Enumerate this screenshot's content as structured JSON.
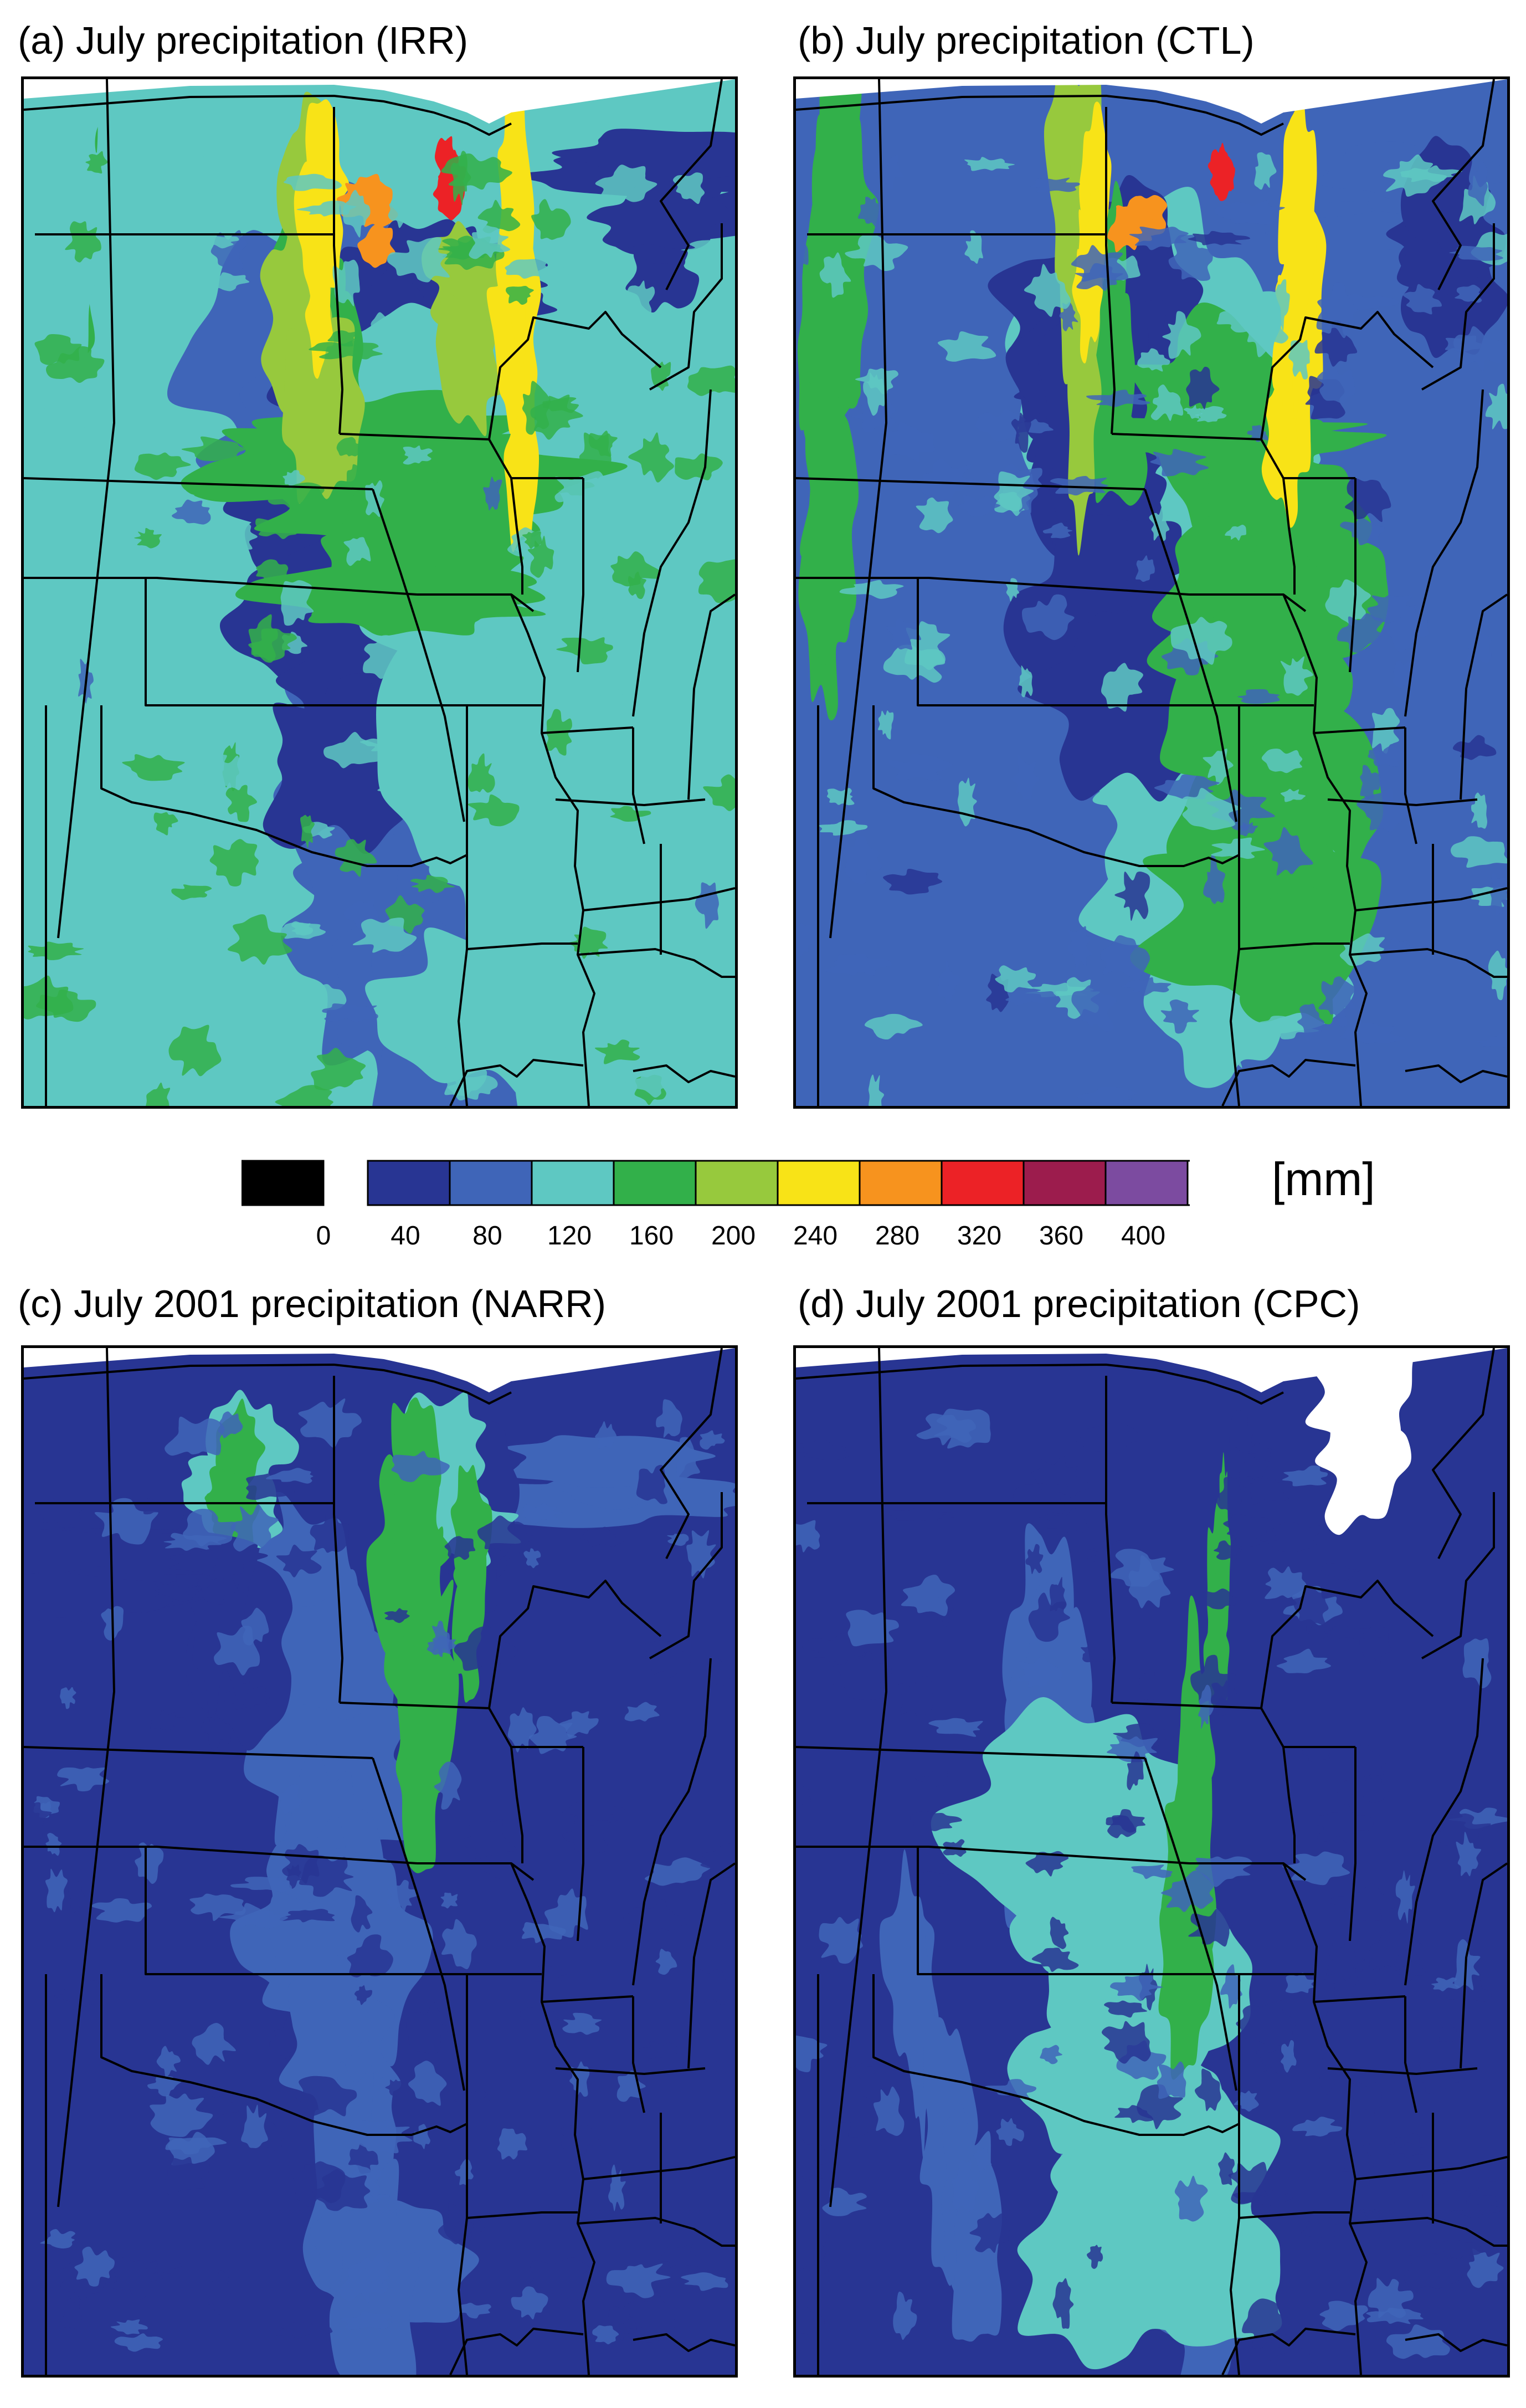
{
  "panels": [
    {
      "id": "a",
      "title": "(a) July precipitation (IRR)",
      "background_level": 3,
      "features": [
        [
          2,
          0.0,
          0.5,
          0.25,
          0.95,
          0.22,
          0.18,
          0.18
        ],
        [
          1,
          0.2,
          0.95,
          0.12,
          0.07,
          0.3,
          0.12,
          0.2
        ],
        [
          1,
          0.6,
          0.62,
          0.22,
          0.18,
          0.12,
          0.12,
          0.25
        ],
        [
          1,
          0.4,
          0.48,
          0.22,
          0.65,
          0.25,
          0.1,
          -0.2
        ],
        [
          1,
          0.9,
          0.9,
          0.18,
          0.12,
          0.12,
          0.2,
          0.0
        ],
        [
          3,
          0.6,
          0.65,
          0.3,
          0.9,
          0.25,
          0.3,
          0.25
        ],
        [
          4,
          1.4,
          0.4,
          0.22,
          0.35,
          0.08,
          0.35,
          0.18
        ],
        [
          4,
          1.6,
          0.55,
          0.35,
          0.5,
          0.35,
          0.1,
          0.2
        ],
        [
          4,
          1.0,
          0.05,
          0.32,
          0.08,
          0.06,
          0.3,
          -0.15
        ],
        [
          5,
          0.7,
          0.4,
          0.1,
          0.3,
          0.07,
          0.3,
          0.0
        ],
        [
          5,
          0.6,
          0.62,
          0.19,
          0.28,
          0.08,
          0.3,
          0.3
        ],
        [
          6,
          0.6,
          0.42,
          0.1,
          0.22,
          0.04,
          0.25,
          0.0
        ],
        [
          6,
          0.5,
          0.7,
          0.35,
          0.14,
          0.05,
          0.3,
          0.0
        ],
        [
          8,
          0.6,
          0.6,
          0.075,
          0.1,
          0.025,
          0.25,
          0.0
        ],
        [
          7,
          0.4,
          0.48,
          0.12,
          0.15,
          0.05,
          0.4,
          0.0
        ],
        [
          3,
          0.4,
          0.04,
          0.46,
          0.05,
          0.08,
          0.3,
          -0.1
        ]
      ]
    },
    {
      "id": "b",
      "title": "(b) July precipitation (CTL)",
      "background_level": 2,
      "features": [
        [
          3,
          0.0,
          0.55,
          0.24,
          0.9,
          0.24,
          0.2,
          0.18
        ],
        [
          2,
          0.2,
          0.9,
          0.15,
          0.1,
          0.35,
          0.15,
          0.2
        ],
        [
          1,
          0.5,
          0.55,
          0.3,
          0.3,
          0.25,
          0.15,
          -0.2
        ],
        [
          1,
          0.7,
          0.45,
          0.18,
          0.6,
          0.2,
          0.12,
          0.1
        ],
        [
          1,
          0.9,
          0.92,
          0.2,
          0.1,
          0.1,
          0.2,
          0.0
        ],
        [
          4,
          0.8,
          0.65,
          0.32,
          0.85,
          0.22,
          0.3,
          0.2
        ],
        [
          4,
          1.2,
          0.45,
          0.2,
          0.35,
          0.06,
          0.3,
          0.15
        ],
        [
          4,
          1.7,
          0.6,
          0.34,
          0.35,
          0.3,
          0.1,
          0.2
        ],
        [
          5,
          0.8,
          0.4,
          0.1,
          0.3,
          0.06,
          0.3,
          0.0
        ],
        [
          6,
          0.9,
          0.42,
          0.1,
          0.22,
          0.035,
          0.3,
          0.0
        ],
        [
          6,
          0.7,
          0.7,
          0.35,
          0.12,
          0.04,
          0.3,
          0.0
        ],
        [
          8,
          0.6,
          0.6,
          0.075,
          0.1,
          0.025,
          0.25,
          0.0
        ],
        [
          7,
          0.4,
          0.48,
          0.12,
          0.15,
          0.05,
          0.4,
          0.0
        ],
        [
          4,
          0.5,
          0.05,
          0.5,
          0.1,
          0.06,
          0.3,
          -0.1
        ]
      ]
    },
    {
      "id": "c",
      "title": "(c) July 2001 precipitation (NARR)",
      "background_level": 1,
      "features": [
        [
          2,
          0.0,
          0.45,
          0.28,
          0.95,
          0.15,
          0.2,
          0.15
        ],
        [
          2,
          0.3,
          0.8,
          0.14,
          0.1,
          0.25,
          0.25,
          0.1
        ],
        [
          1,
          0.6,
          0.62,
          0.22,
          0.1,
          0.12,
          0.15,
          -0.1
        ],
        [
          1,
          0.7,
          0.3,
          0.3,
          0.15,
          0.12,
          0.25,
          0.0
        ],
        [
          3,
          0.8,
          0.6,
          0.18,
          0.1,
          0.1,
          0.2,
          0.0
        ],
        [
          3,
          1.0,
          0.3,
          0.08,
          0.15,
          0.08,
          0.4,
          0.2
        ],
        [
          4,
          1.1,
          0.3,
          0.1,
          0.16,
          0.05,
          0.4,
          0.2
        ],
        [
          4,
          1.3,
          0.55,
          0.4,
          0.12,
          0.06,
          0.3,
          0.1
        ],
        [
          4,
          1.5,
          0.62,
          0.18,
          0.28,
          0.04,
          0.3,
          0.0
        ],
        [
          1,
          0.5,
          0.1,
          0.2,
          0.25,
          0.3,
          0.1,
          0.0
        ]
      ]
    },
    {
      "id": "d",
      "title": "(d) July 2001 precipitation (CPC)",
      "background_level": 1,
      "features": [
        [
          2,
          0.0,
          0.48,
          0.5,
          0.95,
          0.1,
          0.35,
          0.4
        ],
        [
          2,
          0.9,
          0.2,
          0.6,
          0.9,
          0.05,
          0.4,
          0.4
        ],
        [
          2,
          1.3,
          0.4,
          0.3,
          0.7,
          0.08,
          0.45,
          0.3
        ],
        [
          3,
          1.8,
          0.45,
          0.45,
          0.92,
          0.2,
          0.4,
          0.35
        ],
        [
          4,
          2.2,
          0.55,
          0.4,
          0.6,
          0.06,
          0.45,
          0.1
        ],
        [
          4,
          2.5,
          0.6,
          0.18,
          0.3,
          0.02,
          0.45,
          0.0
        ],
        [
          0,
          0.0,
          0.8,
          0.0,
          0.1,
          0.1,
          0.05,
          0.0
        ]
      ]
    }
  ],
  "colorbar": {
    "unit": "[mm]",
    "colors": [
      "#000000",
      "#283593",
      "#3f65b8",
      "#5ec8c2",
      "#32b04a",
      "#97c93d",
      "#f8e317",
      "#f7931e",
      "#ec2226",
      "#9c1c4d",
      "#7c4ba0",
      "#ffffff"
    ],
    "tick_labels": [
      "0",
      "40",
      "80",
      "120",
      "160",
      "200",
      "240",
      "280",
      "320",
      "360",
      "400"
    ]
  },
  "map_levels": [
    "#ffffff",
    "#283593",
    "#3f65b8",
    "#5ec8c2",
    "#32b04a",
    "#97c93d",
    "#f8e317",
    "#f7931e",
    "#ec2226",
    "#9c1c4d",
    "#7c4ba0",
    "#ffffff"
  ]
}
